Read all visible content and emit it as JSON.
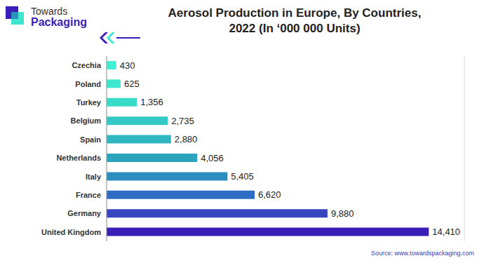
{
  "logo": {
    "line1": "Towards",
    "line2": "Packaging"
  },
  "source": "Source: www.towardspackaging.com",
  "chart_data": {
    "type": "bar",
    "title": "Aerosol Production in Europe, By Countries, 2022 (In ‘000 000 Units)",
    "orientation": "horizontal",
    "categories": [
      "Czechia",
      "Poland",
      "Turkey",
      "Belgium",
      "Spain",
      "Netherlands",
      "Italy",
      "France",
      "Germany",
      "United Kingdom"
    ],
    "values": [
      430,
      625,
      1356,
      2735,
      2880,
      4056,
      5405,
      6620,
      9880,
      14410
    ],
    "value_labels": [
      "430",
      "625",
      "1,356",
      "2,735",
      "2,880",
      "4,056",
      "5,405",
      "6,620",
      "9,880",
      "14,410"
    ],
    "colors": [
      "#40f0d4",
      "#3ce6cf",
      "#38dac8",
      "#34c8c4",
      "#30b6c0",
      "#2ca4be",
      "#2c8ec0",
      "#2f6cc4",
      "#3846c0",
      "#3a1eb6"
    ],
    "xlim": [
      0,
      16000
    ],
    "xticks": [
      0,
      4000,
      8000,
      12000,
      16000
    ],
    "grid": true,
    "data_labels": true,
    "tick_labels": "y"
  }
}
